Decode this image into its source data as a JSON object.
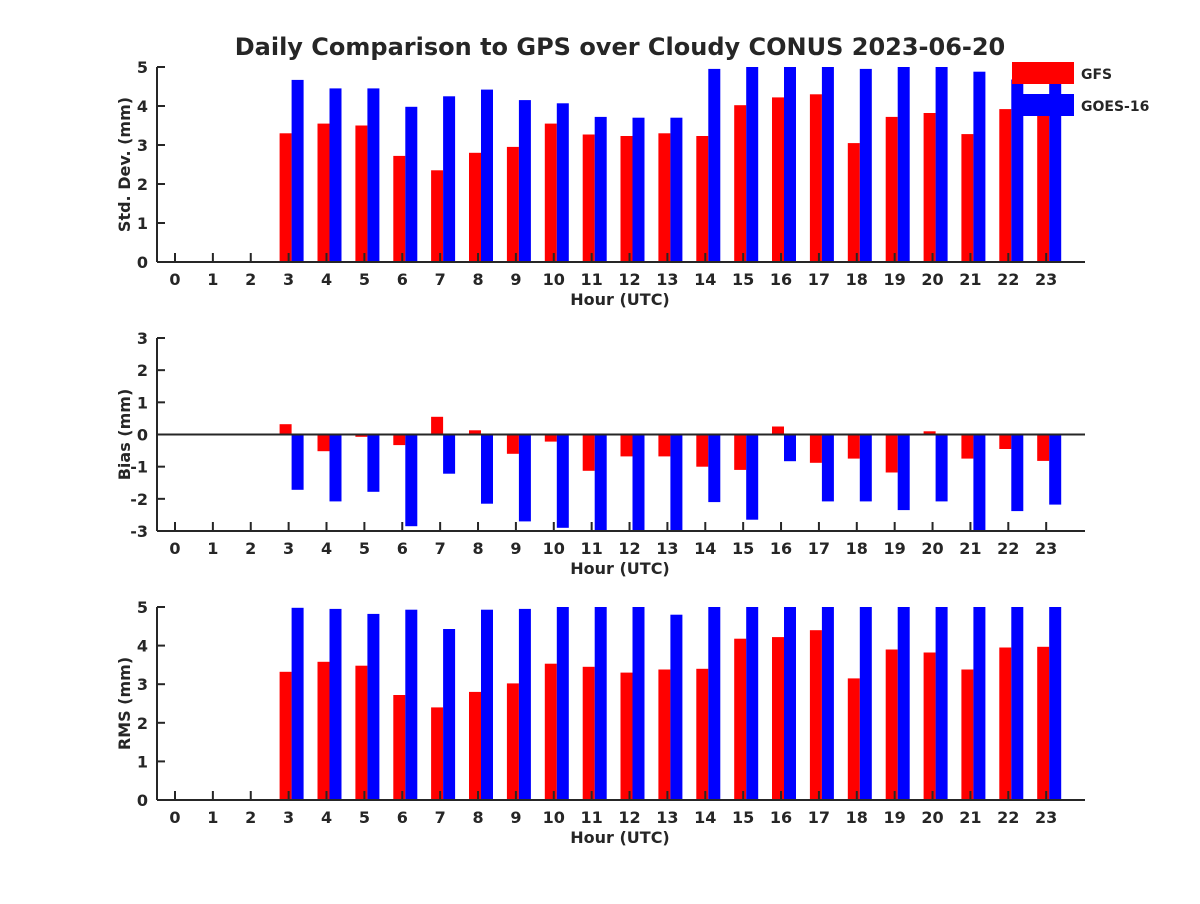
{
  "title": "Daily Comparison to GPS over Cloudy CONUS 2023-06-20",
  "legend": {
    "placement": "top-right",
    "entries": [
      {
        "name": "GFS",
        "color": "#ff0000"
      },
      {
        "name": "GOES-16",
        "color": "#0000ff"
      }
    ]
  },
  "chart_data": [
    {
      "type": "bar",
      "id": "std",
      "xlabel": "Hour (UTC)",
      "ylabel": "Std. Dev. (mm)",
      "categories": [
        "0",
        "1",
        "2",
        "3",
        "4",
        "5",
        "6",
        "7",
        "8",
        "9",
        "10",
        "11",
        "12",
        "13",
        "14",
        "15",
        "16",
        "17",
        "18",
        "19",
        "20",
        "21",
        "22",
        "23"
      ],
      "ylim": [
        0,
        5
      ],
      "yticks": [
        0,
        1,
        2,
        3,
        4,
        5
      ],
      "series": [
        {
          "name": "GFS",
          "color": "#ff0000",
          "values": [
            null,
            null,
            null,
            3.3,
            3.55,
            3.5,
            2.72,
            2.35,
            2.8,
            2.95,
            3.55,
            3.27,
            3.23,
            3.3,
            3.23,
            4.02,
            4.22,
            4.3,
            3.05,
            3.72,
            3.82,
            3.28,
            3.92,
            3.9
          ]
        },
        {
          "name": "GOES-16",
          "color": "#0000ff",
          "values": [
            null,
            null,
            null,
            4.67,
            4.45,
            4.45,
            3.98,
            4.25,
            4.42,
            4.15,
            4.07,
            3.72,
            3.7,
            3.7,
            4.95,
            5.0,
            5.0,
            5.0,
            4.95,
            5.0,
            5.0,
            4.88,
            4.68,
            4.7
          ]
        }
      ]
    },
    {
      "type": "bar",
      "id": "bias",
      "xlabel": "Hour (UTC)",
      "ylabel": "Bias (mm)",
      "categories": [
        "0",
        "1",
        "2",
        "3",
        "4",
        "5",
        "6",
        "7",
        "8",
        "9",
        "10",
        "11",
        "12",
        "13",
        "14",
        "15",
        "16",
        "17",
        "18",
        "19",
        "20",
        "21",
        "22",
        "23"
      ],
      "ylim": [
        -3,
        3
      ],
      "yticks": [
        -3,
        -2,
        -1,
        0,
        1,
        2,
        3
      ],
      "series": [
        {
          "name": "GFS",
          "color": "#ff0000",
          "values": [
            null,
            null,
            null,
            0.32,
            -0.52,
            -0.07,
            -0.33,
            0.55,
            0.13,
            -0.6,
            -0.22,
            -1.13,
            -0.68,
            -0.68,
            -1.0,
            -1.1,
            0.25,
            -0.88,
            -0.75,
            -1.18,
            0.1,
            -0.75,
            -0.45,
            -0.82
          ]
        },
        {
          "name": "GOES-16",
          "color": "#0000ff",
          "values": [
            null,
            null,
            null,
            -1.72,
            -2.08,
            -1.78,
            -2.85,
            -1.22,
            -2.15,
            -2.7,
            -2.9,
            -3.0,
            -3.0,
            -3.0,
            -2.1,
            -2.65,
            -0.83,
            -2.08,
            -2.08,
            -2.35,
            -2.08,
            -3.0,
            -2.38,
            -2.18
          ]
        }
      ]
    },
    {
      "type": "bar",
      "id": "rms",
      "xlabel": "Hour (UTC)",
      "ylabel": "RMS (mm)",
      "categories": [
        "0",
        "1",
        "2",
        "3",
        "4",
        "5",
        "6",
        "7",
        "8",
        "9",
        "10",
        "11",
        "12",
        "13",
        "14",
        "15",
        "16",
        "17",
        "18",
        "19",
        "20",
        "21",
        "22",
        "23"
      ],
      "ylim": [
        0,
        5
      ],
      "yticks": [
        0,
        1,
        2,
        3,
        4,
        5
      ],
      "series": [
        {
          "name": "GFS",
          "color": "#ff0000",
          "values": [
            null,
            null,
            null,
            3.32,
            3.58,
            3.48,
            2.72,
            2.4,
            2.8,
            3.02,
            3.53,
            3.45,
            3.3,
            3.38,
            3.4,
            4.18,
            4.22,
            4.4,
            3.15,
            3.9,
            3.82,
            3.38,
            3.95,
            3.97
          ]
        },
        {
          "name": "GOES-16",
          "color": "#0000ff",
          "values": [
            null,
            null,
            null,
            4.98,
            4.95,
            4.82,
            4.93,
            4.43,
            4.93,
            4.95,
            5.0,
            5.0,
            5.0,
            4.8,
            5.0,
            5.0,
            5.0,
            5.0,
            5.0,
            5.0,
            5.0,
            5.0,
            5.0,
            5.0
          ]
        }
      ]
    }
  ]
}
